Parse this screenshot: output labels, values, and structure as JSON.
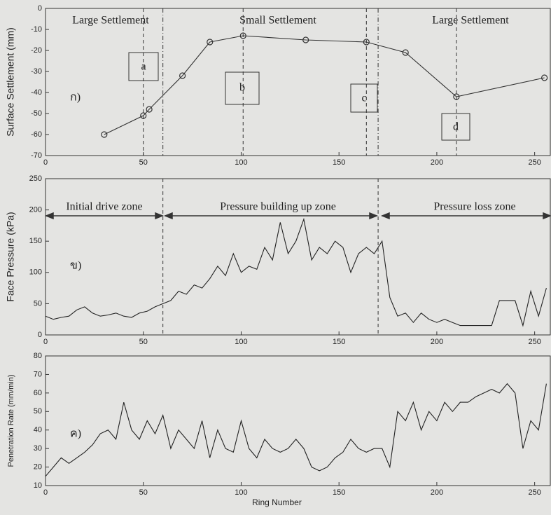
{
  "chart_data": [
    {
      "type": "line",
      "ylabel": "Surface Settlement (mm)",
      "panel_label": "ก)",
      "zones": [
        "Large Settlement",
        "Small Settlement",
        "Large Settlement"
      ],
      "boxes": [
        "a",
        "b",
        "c",
        "d"
      ],
      "xlim": [
        0,
        258
      ],
      "xticks": [
        0,
        50,
        100,
        150,
        200,
        250
      ],
      "ylim": [
        -70,
        0
      ],
      "yticks": [
        0,
        -10,
        -20,
        -30,
        -40,
        -50,
        -60,
        -70
      ],
      "vlines": [
        {
          "x": 60,
          "style": "dashdot"
        },
        {
          "x": 170,
          "style": "dashdot"
        },
        {
          "x": 50,
          "style": "dashed"
        },
        {
          "x": 101,
          "style": "dashed"
        },
        {
          "x": 164,
          "style": "dashed"
        },
        {
          "x": 210,
          "style": "dashed"
        }
      ],
      "markers": true,
      "series": [
        {
          "color": "#333333",
          "x": [
            30,
            50,
            53,
            70,
            84,
            101,
            133,
            164,
            184,
            210,
            255
          ],
          "values": [
            -60,
            -51,
            -48,
            -32,
            -16,
            -13,
            -15,
            -16,
            -21,
            -42,
            -33
          ]
        }
      ]
    },
    {
      "type": "line",
      "ylabel": "Face Pressure (kPa)",
      "panel_label": "ข)",
      "zones": [
        "Initial drive zone",
        "Pressure building up zone",
        "Pressure loss zone"
      ],
      "xlim": [
        0,
        258
      ],
      "xticks": [
        0,
        50,
        100,
        150,
        200,
        250
      ],
      "ylim": [
        0,
        250
      ],
      "yticks": [
        0,
        50,
        100,
        150,
        200,
        250
      ],
      "vlines": [
        {
          "x": 60,
          "style": "dashed"
        },
        {
          "x": 170,
          "style": "dashed"
        }
      ],
      "markers": false,
      "series": [
        {
          "color": "#222222",
          "x": [
            0,
            4,
            8,
            12,
            16,
            20,
            24,
            28,
            32,
            36,
            40,
            44,
            48,
            52,
            56,
            60,
            64,
            68,
            72,
            76,
            80,
            84,
            88,
            92,
            96,
            100,
            104,
            108,
            112,
            116,
            120,
            124,
            128,
            132,
            136,
            140,
            144,
            148,
            152,
            156,
            160,
            164,
            168,
            172,
            176,
            180,
            184,
            188,
            192,
            196,
            200,
            204,
            208,
            212,
            216,
            220,
            224,
            228,
            232,
            236,
            240,
            244,
            248,
            252,
            256
          ],
          "values": [
            30,
            25,
            28,
            30,
            40,
            45,
            35,
            30,
            32,
            35,
            30,
            28,
            35,
            38,
            45,
            50,
            55,
            70,
            65,
            80,
            75,
            90,
            110,
            95,
            130,
            100,
            110,
            105,
            140,
            120,
            180,
            130,
            150,
            185,
            120,
            140,
            130,
            150,
            140,
            100,
            130,
            140,
            130,
            150,
            60,
            30,
            35,
            20,
            35,
            25,
            20,
            25,
            20,
            15,
            15,
            15,
            15,
            15,
            55,
            55,
            55,
            15,
            70,
            30,
            75
          ]
        }
      ]
    },
    {
      "type": "line",
      "ylabel": "Penetration Rate (mm/min)",
      "xlabel": "Ring Number",
      "panel_label": "ค)",
      "xlim": [
        0,
        258
      ],
      "xticks": [
        0,
        50,
        100,
        150,
        200,
        250
      ],
      "ylim": [
        10,
        80
      ],
      "yticks": [
        10,
        20,
        30,
        40,
        50,
        60,
        70,
        80
      ],
      "markers": false,
      "series": [
        {
          "color": "#222222",
          "x": [
            0,
            4,
            8,
            12,
            16,
            20,
            24,
            28,
            32,
            36,
            40,
            44,
            48,
            52,
            56,
            60,
            64,
            68,
            72,
            76,
            80,
            84,
            88,
            92,
            96,
            100,
            104,
            108,
            112,
            116,
            120,
            124,
            128,
            132,
            136,
            140,
            144,
            148,
            152,
            156,
            160,
            164,
            168,
            172,
            176,
            180,
            184,
            188,
            192,
            196,
            200,
            204,
            208,
            212,
            216,
            220,
            224,
            228,
            232,
            236,
            240,
            244,
            248,
            252,
            256
          ],
          "values": [
            15,
            20,
            25,
            22,
            25,
            28,
            32,
            38,
            40,
            35,
            55,
            40,
            35,
            45,
            38,
            48,
            30,
            40,
            35,
            30,
            45,
            25,
            40,
            30,
            28,
            45,
            30,
            25,
            35,
            30,
            28,
            30,
            35,
            30,
            20,
            18,
            20,
            25,
            28,
            35,
            30,
            28,
            30,
            30,
            20,
            50,
            45,
            55,
            40,
            50,
            45,
            55,
            50,
            55,
            55,
            58,
            60,
            62,
            60,
            65,
            60,
            30,
            45,
            40,
            65
          ]
        }
      ]
    }
  ]
}
